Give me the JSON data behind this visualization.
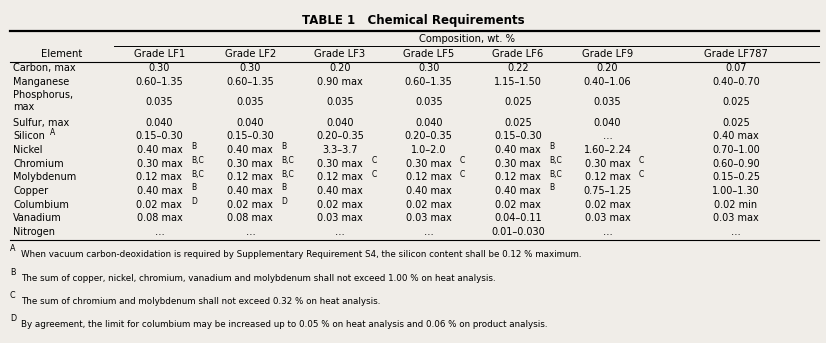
{
  "title": "TABLE 1   Chemical Requirements",
  "composition_header": "Composition, wt. %",
  "col_headers": [
    "Element",
    "Grade LF1",
    "Grade LF2",
    "Grade LF3",
    "Grade LF5",
    "Grade LF6",
    "Grade LF9",
    "Grade LF787"
  ],
  "rows": [
    [
      "Carbon, max",
      "0.30",
      "0.30",
      "0.20",
      "0.30",
      "0.22",
      "0.20",
      "0.07"
    ],
    [
      "Manganese",
      "0.60–1.35",
      "0.60–1.35",
      "0.90 max",
      "0.60–1.35",
      "1.15–1.50",
      "0.40–1.06",
      "0.40–0.70"
    ],
    [
      "Phosphorus,\nmax",
      "0.035",
      "0.035",
      "0.035",
      "0.035",
      "0.025",
      "0.035",
      "0.025"
    ],
    [
      "Sulfur, max",
      "0.040",
      "0.040",
      "0.040",
      "0.040",
      "0.025",
      "0.040",
      "0.025"
    ],
    [
      "SiliconA",
      "0.15–0.30",
      "0.15–0.30",
      "0.20–0.35",
      "0.20–0.35",
      "0.15–0.30",
      "...",
      "0.40 max"
    ],
    [
      "Nickel",
      "0.40 maxB",
      "0.40 maxB",
      "3.3–3.7",
      "1.0–2.0",
      "0.40 maxB",
      "1.60–2.24",
      "0.70–1.00"
    ],
    [
      "Chromium",
      "0.30 maxB,C",
      "0.30 maxB,C",
      "0.30 maxC",
      "0.30 maxC",
      "0.30 maxB,C",
      "0.30 maxC",
      "0.60–0.90"
    ],
    [
      "Molybdenum",
      "0.12 maxB,C",
      "0.12 maxB,C",
      "0.12 maxC",
      "0.12 maxC",
      "0.12 maxB,C",
      "0.12 maxC",
      "0.15–0.25"
    ],
    [
      "Copper",
      "0.40 maxB",
      "0.40 maxB",
      "0.40 max",
      "0.40 max",
      "0.40 maxB",
      "0.75–1.25",
      "1.00–1.30"
    ],
    [
      "Columbium",
      "0.02 maxD",
      "0.02 maxD",
      "0.02 max",
      "0.02 max",
      "0.02 max",
      "0.02 max",
      "0.02 min"
    ],
    [
      "Vanadium",
      "0.08 max",
      "0.08 max",
      "0.03 max",
      "0.03 max",
      "0.04–0.11",
      "0.03 max",
      "0.03 max"
    ],
    [
      "Nitrogen",
      "...",
      "...",
      "...",
      "...",
      "0.01–0.030",
      "...",
      "..."
    ]
  ],
  "rows_superscripts": [
    [
      "",
      "",
      "",
      "",
      "",
      "",
      "",
      ""
    ],
    [
      "",
      "",
      "",
      "",
      "",
      "",
      "",
      ""
    ],
    [
      "",
      "",
      "",
      "",
      "",
      "",
      "",
      ""
    ],
    [
      "",
      "",
      "",
      "",
      "",
      "",
      "",
      ""
    ],
    [
      "A",
      "",
      "",
      "",
      "",
      "",
      "",
      ""
    ],
    [
      "",
      "B",
      "B",
      "",
      "",
      "B",
      "",
      ""
    ],
    [
      "",
      "B,C",
      "B,C",
      "C",
      "C",
      "B,C",
      "C",
      ""
    ],
    [
      "",
      "B,C",
      "B,C",
      "C",
      "C",
      "B,C",
      "C",
      ""
    ],
    [
      "",
      "B",
      "B",
      "",
      "",
      "B",
      "",
      ""
    ],
    [
      "",
      "D",
      "D",
      "",
      "",
      "",
      "",
      ""
    ],
    [
      "",
      "",
      "",
      "",
      "",
      "",
      "",
      ""
    ],
    [
      "",
      "",
      "",
      "",
      "",
      "",
      "",
      ""
    ]
  ],
  "rows_display": [
    [
      "Carbon, max",
      "0.30",
      "0.30",
      "0.20",
      "0.30",
      "0.22",
      "0.20",
      "0.07"
    ],
    [
      "Manganese",
      "0.60–1.35",
      "0.60–1.35",
      "0.90 max",
      "0.60–1.35",
      "1.15–1.50",
      "0.40–1.06",
      "0.40–0.70"
    ],
    [
      "Phosphorus,\nmax",
      "0.035",
      "0.035",
      "0.035",
      "0.035",
      "0.025",
      "0.035",
      "0.025"
    ],
    [
      "Sulfur, max",
      "0.040",
      "0.040",
      "0.040",
      "0.040",
      "0.025",
      "0.040",
      "0.025"
    ],
    [
      "Silicon",
      "0.15–0.30",
      "0.15–0.30",
      "0.20–0.35",
      "0.20–0.35",
      "0.15–0.30",
      "…",
      "0.40 max"
    ],
    [
      "Nickel",
      "0.40 max",
      "0.40 max",
      "3.3–3.7",
      "1.0–2.0",
      "0.40 max",
      "1.60–2.24",
      "0.70–1.00"
    ],
    [
      "Chromium",
      "0.30 max",
      "0.30 max",
      "0.30 max",
      "0.30 max",
      "0.30 max",
      "0.30 max",
      "0.60–0.90"
    ],
    [
      "Molybdenum",
      "0.12 max",
      "0.12 max",
      "0.12 max",
      "0.12 max",
      "0.12 max",
      "0.12 max",
      "0.15–0.25"
    ],
    [
      "Copper",
      "0.40 max",
      "0.40 max",
      "0.40 max",
      "0.40 max",
      "0.40 max",
      "0.75–1.25",
      "1.00–1.30"
    ],
    [
      "Columbium",
      "0.02 max",
      "0.02 max",
      "0.02 max",
      "0.02 max",
      "0.02 max",
      "0.02 max",
      "0.02 min"
    ],
    [
      "Vanadium",
      "0.08 max",
      "0.08 max",
      "0.03 max",
      "0.03 max",
      "0.04–0.11",
      "0.03 max",
      "0.03 max"
    ],
    [
      "Nitrogen",
      "…",
      "…",
      "…",
      "…",
      "0.01–0.030",
      "…",
      "…"
    ]
  ],
  "footnotes": [
    "When vacuum carbon-deoxidation is required by Supplementary Requirement S4, the silicon content shall be 0.12 % maximum.",
    "The sum of copper, nickel, chromium, vanadium and molybdenum shall not exceed 1.00 % on heat analysis.",
    "The sum of chromium and molybdenum shall not exceed 0.32 % on heat analysis.",
    "By agreement, the limit for columbium may be increased up to 0.05 % on heat analysis and 0.06 % on product analysis."
  ],
  "footnote_labels": [
    "A",
    "B",
    "C",
    "D"
  ],
  "bg_color": "#f0ede8",
  "font_size": 7.0,
  "header_font_size": 7.2,
  "title_font_size": 8.5,
  "footnote_font_size": 6.3
}
